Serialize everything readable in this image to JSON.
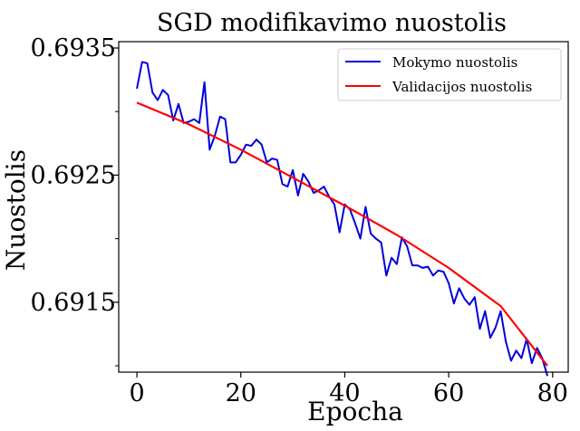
{
  "chart_data": {
    "type": "line",
    "title": "SGD modifikavimo nuostolis",
    "xlabel": "Epocha",
    "ylabel": "Nuostolis",
    "xlim": [
      -3.5,
      83
    ],
    "ylim": [
      0.69095,
      0.69355
    ],
    "x_ticks": [
      0,
      20,
      40,
      60,
      80
    ],
    "x_tick_labels": [
      "0",
      "20",
      "40",
      "60",
      "80"
    ],
    "y_ticks": [
      0.6915,
      0.6925,
      0.6935
    ],
    "y_tick_labels": [
      "0.6915",
      "0.6925",
      "0.6935"
    ],
    "y_minor_ticks": [
      0.691,
      0.692,
      0.693
    ],
    "grid": false,
    "legend_position": "top-right",
    "series": [
      {
        "name": "Mokymo nuostolis",
        "color": "#0000dd",
        "x": [
          0,
          1,
          2,
          3,
          4,
          5,
          6,
          7,
          8,
          9,
          10,
          11,
          12,
          13,
          14,
          15,
          16,
          17,
          18,
          19,
          20,
          21,
          22,
          23,
          24,
          25,
          26,
          27,
          28,
          29,
          30,
          31,
          32,
          33,
          34,
          35,
          36,
          37,
          38,
          39,
          40,
          41,
          42,
          43,
          44,
          45,
          46,
          47,
          48,
          49,
          50,
          51,
          52,
          53,
          54,
          55,
          56,
          57,
          58,
          59,
          60,
          61,
          62,
          63,
          64,
          65,
          66,
          67,
          68,
          69,
          70,
          71,
          72,
          73,
          74,
          75,
          76,
          77,
          78,
          79
        ],
        "y": [
          0.69318,
          0.69339,
          0.69338,
          0.69315,
          0.69309,
          0.69317,
          0.69313,
          0.69293,
          0.69306,
          0.69291,
          0.69292,
          0.69294,
          0.69291,
          0.69323,
          0.6927,
          0.69281,
          0.69296,
          0.69294,
          0.6926,
          0.6926,
          0.69266,
          0.69274,
          0.69273,
          0.69278,
          0.69274,
          0.6926,
          0.69263,
          0.69262,
          0.69243,
          0.69241,
          0.69254,
          0.69234,
          0.69251,
          0.69245,
          0.69236,
          0.69238,
          0.69241,
          0.69233,
          0.69227,
          0.69205,
          0.69227,
          0.69223,
          0.69212,
          0.692,
          0.69225,
          0.69204,
          0.692,
          0.69197,
          0.69171,
          0.69185,
          0.6918,
          0.69201,
          0.69194,
          0.69179,
          0.69179,
          0.69177,
          0.69178,
          0.69171,
          0.69175,
          0.69174,
          0.69165,
          0.69149,
          0.69161,
          0.69153,
          0.69148,
          0.69154,
          0.69129,
          0.69143,
          0.69122,
          0.6913,
          0.69143,
          0.69119,
          0.69104,
          0.69112,
          0.69106,
          0.69121,
          0.69102,
          0.69114,
          0.69106,
          0.69092
        ]
      },
      {
        "name": "Validacijos nuostolis",
        "color": "#ff0000",
        "x": [
          0,
          10,
          20,
          30,
          40,
          50,
          60,
          70,
          79
        ],
        "y": [
          0.69307,
          0.6929,
          0.6927,
          0.69248,
          0.69226,
          0.69203,
          0.69177,
          0.69147,
          0.691
        ]
      }
    ]
  }
}
